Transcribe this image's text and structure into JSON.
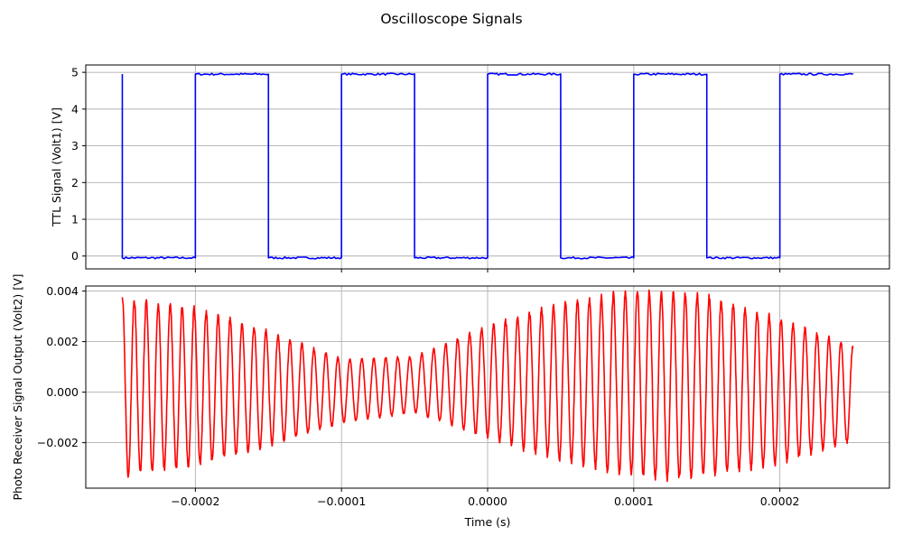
{
  "chart_data": [
    {
      "type": "line",
      "title": "",
      "suptitle": "Oscilloscope Signals",
      "xlabel": "",
      "ylabel": "TTL Signal (Volt1) [V]",
      "xlim": [
        -0.000275,
        0.000275
      ],
      "ylim": [
        -0.35,
        5.2
      ],
      "xticks": [
        -0.0002,
        -0.0001,
        0.0,
        0.0001,
        0.0002
      ],
      "xtick_labels": [
        "",
        "",
        "",
        "",
        ""
      ],
      "yticks": [
        0,
        1,
        2,
        3,
        4,
        5
      ],
      "ytick_labels": [
        "0",
        "1",
        "2",
        "3",
        "4",
        "5"
      ],
      "grid": true,
      "series": [
        {
          "color": "#0000ff",
          "style": "square-wave",
          "x": [
            -0.00025,
            -0.00025,
            -0.0002,
            -0.0002,
            -0.00015,
            -0.00015,
            -0.0001,
            -0.0001,
            -5e-05,
            -5e-05,
            0.0,
            0.0,
            5e-05,
            5e-05,
            0.0001,
            0.0001,
            0.00015,
            0.00015,
            0.0002,
            0.0002,
            0.00025
          ],
          "y": [
            4.95,
            -0.05,
            -0.05,
            4.95,
            4.95,
            -0.05,
            -0.05,
            4.95,
            4.95,
            -0.05,
            -0.05,
            4.95,
            4.95,
            -0.05,
            -0.05,
            4.95,
            4.95,
            -0.05,
            -0.05,
            4.95,
            4.95
          ]
        }
      ]
    },
    {
      "type": "line",
      "title": "",
      "xlabel": "Time (s)",
      "ylabel": "Photo Receiver Signal Output (Volt2) [V]",
      "xlim": [
        -0.000275,
        0.000275
      ],
      "ylim": [
        -0.0038,
        0.0042
      ],
      "xticks": [
        -0.0002,
        -0.0001,
        0.0,
        0.0001,
        0.0002
      ],
      "xtick_labels": [
        "−0.0002",
        "−0.0001",
        "0.0000",
        "0.0001",
        "0.0002"
      ],
      "yticks": [
        -0.002,
        0.0,
        0.002,
        0.004
      ],
      "ytick_labels": [
        "−0.002",
        "0.000",
        "0.002",
        "0.004"
      ],
      "grid": true,
      "series": [
        {
          "color": "#ff0000",
          "style": "amplitude-modulated oscillation",
          "x_range": [
            -0.00025,
            0.00025
          ],
          "cycles": 61,
          "envelope_x": [
            -0.00025,
            -0.0002,
            -0.00015,
            -0.0001,
            -5e-05,
            0.0,
            5e-05,
            0.0001,
            0.00012,
            0.00015,
            0.0002,
            0.00025
          ],
          "envelope_upper": [
            0.0037,
            0.0033,
            0.0024,
            0.0013,
            0.0014,
            0.0026,
            0.0035,
            0.004,
            0.004,
            0.0038,
            0.0029,
            0.0018
          ],
          "envelope_lower": [
            -0.0033,
            -0.0029,
            -0.0021,
            -0.0012,
            -0.0008,
            -0.0018,
            -0.0027,
            -0.0033,
            -0.0034,
            -0.0033,
            -0.0028,
            -0.0019
          ]
        }
      ]
    }
  ]
}
